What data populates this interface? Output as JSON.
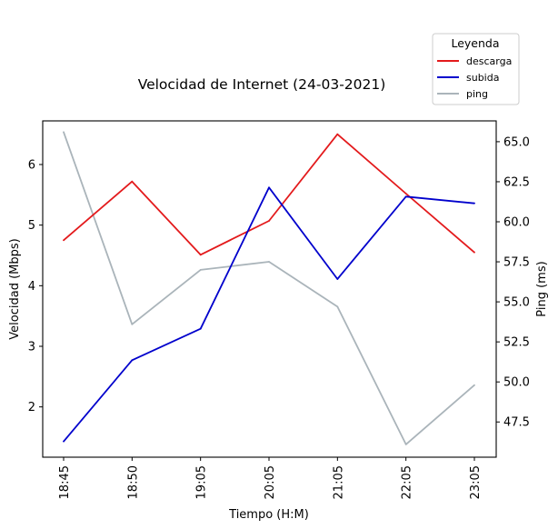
{
  "chart_data": {
    "type": "line",
    "title": "Velocidad de Internet (24-03-2021)",
    "xlabel": "Tiempo (H:M)",
    "ylabel_left": "Velocidad (Mbps)",
    "ylabel_right": "Ping (ms)",
    "categories": [
      "18:45",
      "18:50",
      "19:05",
      "20:05",
      "21:05",
      "22:05",
      "23:05"
    ],
    "ylim_left": [
      1.17,
      6.72
    ],
    "yticks_left": [
      "2",
      "3",
      "4",
      "5",
      "6"
    ],
    "ylim_right": [
      45.3,
      66.3
    ],
    "yticks_right": [
      "47.5",
      "50.0",
      "52.5",
      "55.0",
      "57.5",
      "60.0",
      "62.5",
      "65.0"
    ],
    "grid": false,
    "legend": {
      "title": "Leyenda",
      "placement": "top-right, outside plot"
    },
    "series": [
      {
        "name": "descarga",
        "axis": "left",
        "color": "#e31a1c",
        "values": [
          4.75,
          5.72,
          4.51,
          5.07,
          6.5,
          5.52,
          4.55
        ]
      },
      {
        "name": "subida",
        "axis": "left",
        "color": "#0000cc",
        "values": [
          1.43,
          2.77,
          3.29,
          5.62,
          4.11,
          5.47,
          5.36
        ]
      },
      {
        "name": "ping",
        "axis": "right",
        "color": "#aab4ba",
        "values": [
          65.6,
          53.6,
          57.0,
          57.5,
          54.7,
          46.1,
          49.8
        ]
      }
    ]
  }
}
